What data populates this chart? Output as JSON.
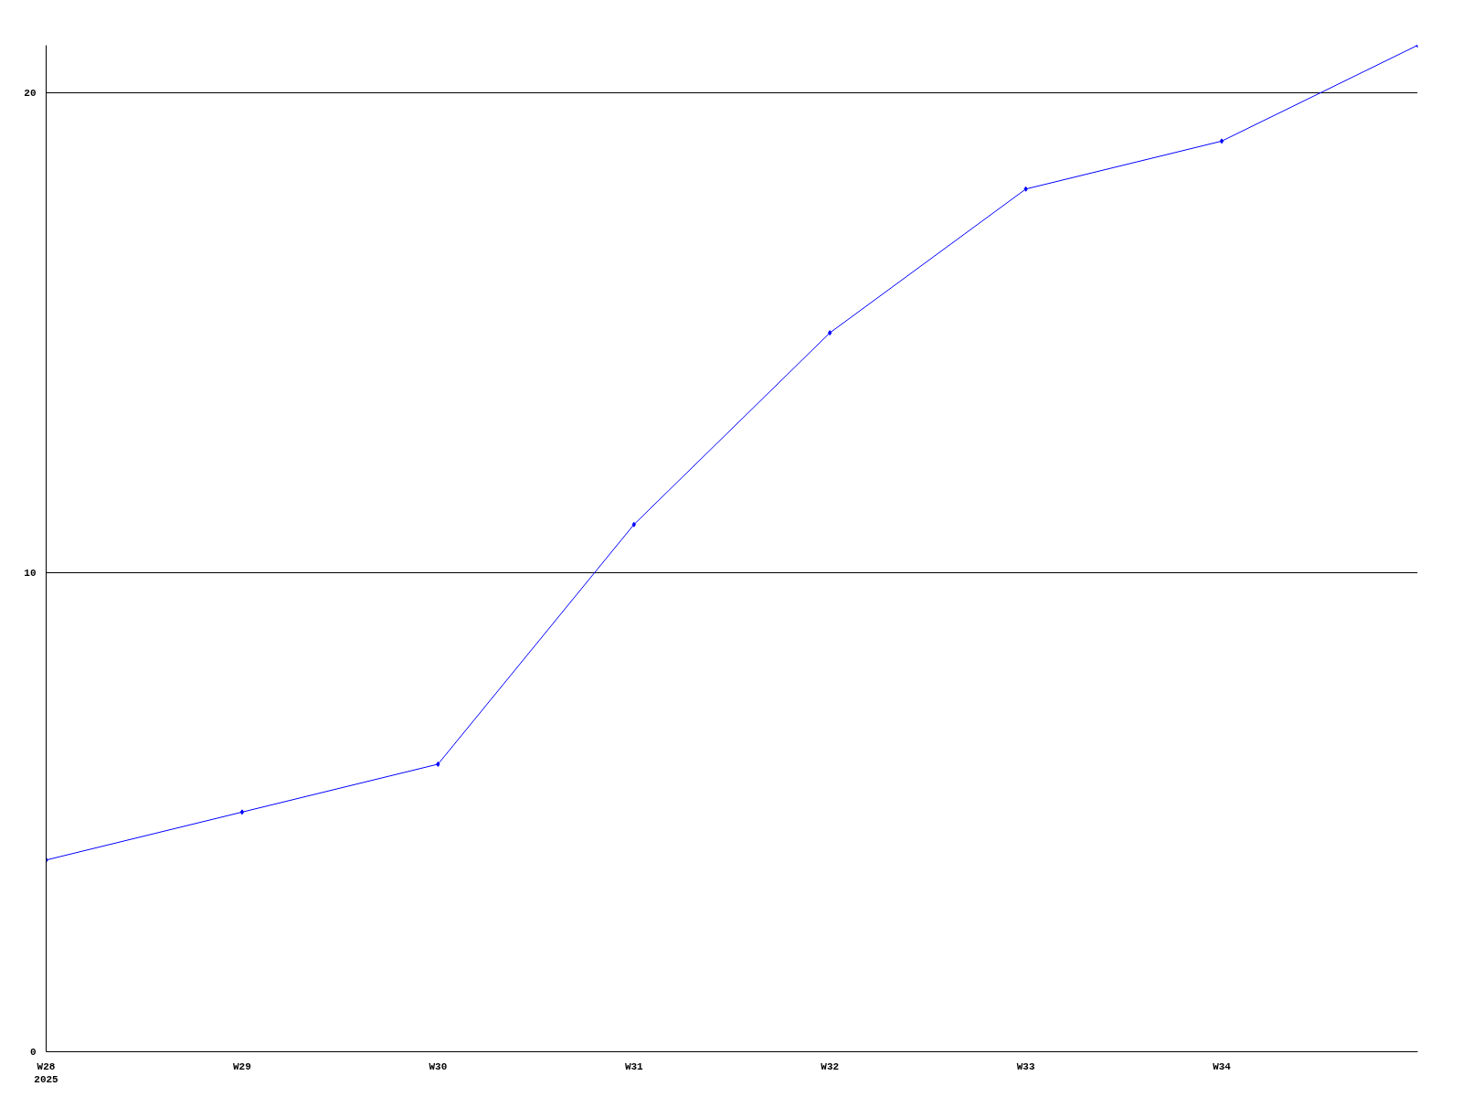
{
  "chart_data": {
    "type": "line",
    "categories": [
      "W28\n2025",
      "W29",
      "W30",
      "W31",
      "W32",
      "W33",
      "W34",
      null
    ],
    "series": [
      {
        "color": "#0000ff",
        "values": [
          4,
          5,
          6,
          11,
          15,
          18,
          19,
          21
        ]
      }
    ],
    "ylim": [
      0,
      21
    ],
    "yticks": [
      0,
      10,
      20
    ],
    "grid": "y",
    "marker": "diamond",
    "line_style": "solid"
  }
}
